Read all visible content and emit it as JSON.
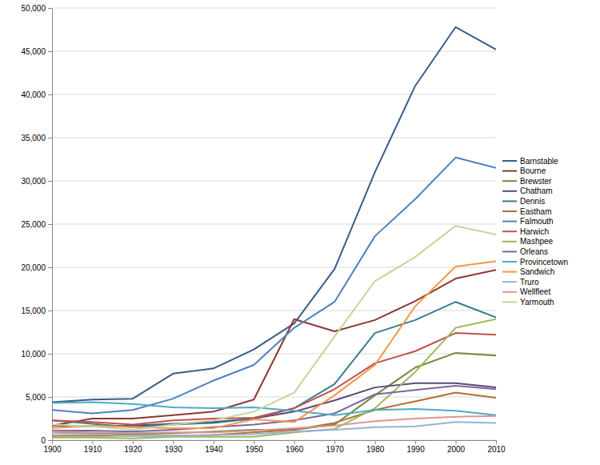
{
  "chart_data": {
    "type": "line",
    "x": [
      1900,
      1910,
      1920,
      1930,
      1940,
      1950,
      1960,
      1970,
      1980,
      1990,
      2000,
      2010
    ],
    "xlim": [
      1900,
      2010
    ],
    "xticks": [
      1900,
      1910,
      1920,
      1930,
      1940,
      1950,
      1960,
      1970,
      1980,
      1990,
      2000,
      2010
    ],
    "ylim": [
      0,
      50000
    ],
    "yticks": [
      0,
      {
        "value": 5000,
        "label": "5,000"
      },
      {
        "value": 10000,
        "label": "10,000"
      },
      {
        "value": 15000,
        "label": "15,000"
      },
      {
        "value": 20000,
        "label": "20,000"
      },
      {
        "value": 25000,
        "label": "25,000"
      },
      {
        "value": 30000,
        "label": "30,000"
      },
      {
        "value": 35000,
        "label": "35,000"
      },
      {
        "value": 40000,
        "label": "40,000"
      },
      {
        "value": 45000,
        "label": "45,000"
      },
      {
        "value": 50000,
        "label": "50,000"
      }
    ],
    "grid": true,
    "legend": "right",
    "series": [
      {
        "name": "Barnstable",
        "color": "#385d8a",
        "values": [
          4400,
          4700,
          4800,
          7700,
          8300,
          10500,
          13500,
          19800,
          31000,
          41000,
          47800,
          45200
        ]
      },
      {
        "name": "Bourne",
        "color": "#8c3836",
        "values": [
          1700,
          2500,
          2500,
          2900,
          3300,
          4700,
          14000,
          12600,
          13900,
          16100,
          18700,
          19700
        ]
      },
      {
        "name": "Brewster",
        "color": "#71893f",
        "values": [
          1000,
          800,
          700,
          800,
          1000,
          1200,
          1200,
          1800,
          5200,
          8400,
          10100,
          9800
        ]
      },
      {
        "name": "Chatham",
        "color": "#5c4776",
        "values": [
          1700,
          1600,
          1700,
          1900,
          2100,
          2500,
          3300,
          4600,
          6100,
          6600,
          6600,
          6100
        ]
      },
      {
        "name": "Dennis",
        "color": "#357d91",
        "values": [
          2300,
          1900,
          1500,
          1800,
          2000,
          2500,
          3700,
          6500,
          12400,
          13900,
          16000,
          14200
        ]
      },
      {
        "name": "Eastham",
        "color": "#b66d31",
        "values": [
          500,
          500,
          500,
          500,
          600,
          900,
          1200,
          2000,
          3500,
          4500,
          5500,
          4900
        ]
      },
      {
        "name": "Falmouth",
        "color": "#4f81bd",
        "values": [
          3500,
          3100,
          3500,
          4800,
          6900,
          8700,
          13000,
          16000,
          23600,
          27900,
          32700,
          31500
        ]
      },
      {
        "name": "Harwich",
        "color": "#c0504d",
        "values": [
          2300,
          2100,
          1800,
          2300,
          2500,
          2600,
          3700,
          5900,
          8900,
          10300,
          12400,
          12200
        ]
      },
      {
        "name": "Mashpee",
        "color": "#9bbb59",
        "values": [
          300,
          300,
          200,
          400,
          400,
          400,
          900,
          1300,
          3700,
          7900,
          13000,
          14000
        ]
      },
      {
        "name": "Orleans",
        "color": "#8064a2",
        "values": [
          1100,
          1100,
          1000,
          1200,
          1500,
          1800,
          2300,
          3100,
          5300,
          5800,
          6300,
          5900
        ]
      },
      {
        "name": "Provincetown",
        "color": "#4bacc6",
        "values": [
          4300,
          4400,
          4200,
          3800,
          3700,
          3800,
          3400,
          2900,
          3500,
          3600,
          3400,
          2900
        ]
      },
      {
        "name": "Sandwich",
        "color": "#f79646",
        "values": [
          1400,
          1700,
          1500,
          1400,
          1400,
          2400,
          2100,
          5200,
          8700,
          15500,
          20100,
          20700
        ]
      },
      {
        "name": "Truro",
        "color": "#95b3d7",
        "values": [
          800,
          700,
          500,
          500,
          600,
          700,
          1000,
          1200,
          1500,
          1600,
          2100,
          2000
        ]
      },
      {
        "name": "Wellfleet",
        "color": "#d99694",
        "values": [
          1000,
          900,
          800,
          900,
          900,
          1100,
          1400,
          1700,
          2200,
          2500,
          2700,
          2800
        ]
      },
      {
        "name": "Yarmouth",
        "color": "#c3d69b",
        "values": [
          1800,
          1600,
          1200,
          1800,
          2300,
          3300,
          5500,
          12000,
          18400,
          21200,
          24800,
          23800
        ]
      }
    ]
  }
}
